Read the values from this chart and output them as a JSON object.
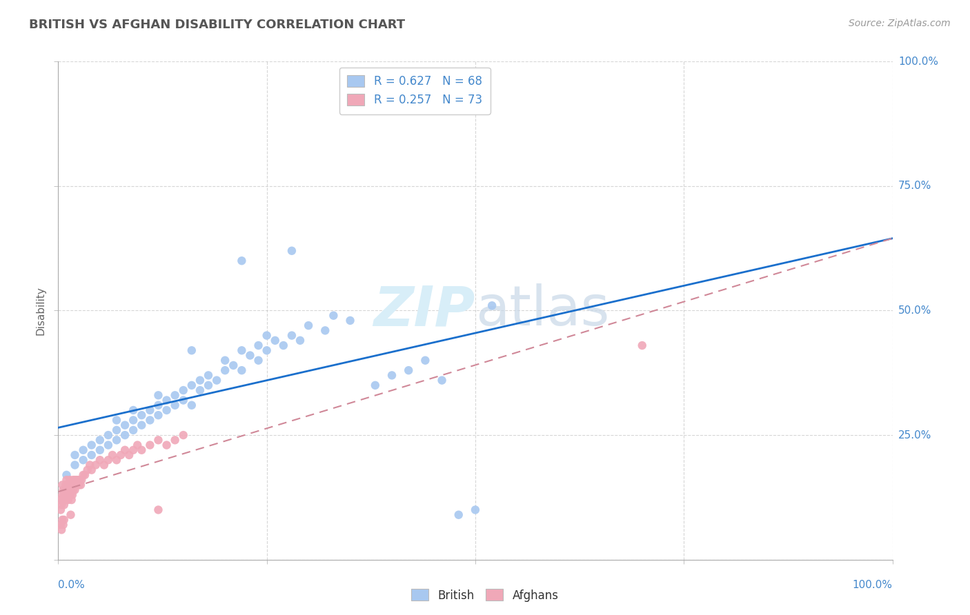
{
  "title": "BRITISH VS AFGHAN DISABILITY CORRELATION CHART",
  "source": "Source: ZipAtlas.com",
  "ylabel": "Disability",
  "british_R": 0.627,
  "british_N": 68,
  "afghan_R": 0.257,
  "afghan_N": 73,
  "british_color": "#a8c8f0",
  "afghan_color": "#f0a8b8",
  "british_line_color": "#1a6fcc",
  "afghan_line_color": "#d08898",
  "grid_color": "#cccccc",
  "background_color": "#ffffff",
  "title_color": "#555555",
  "axis_label_color": "#4488cc",
  "watermark_color": "#d8eef8",
  "british_points": [
    [
      0.01,
      0.17
    ],
    [
      0.02,
      0.19
    ],
    [
      0.02,
      0.21
    ],
    [
      0.03,
      0.2
    ],
    [
      0.03,
      0.22
    ],
    [
      0.04,
      0.21
    ],
    [
      0.04,
      0.23
    ],
    [
      0.05,
      0.22
    ],
    [
      0.05,
      0.24
    ],
    [
      0.06,
      0.23
    ],
    [
      0.06,
      0.25
    ],
    [
      0.07,
      0.24
    ],
    [
      0.07,
      0.26
    ],
    [
      0.07,
      0.28
    ],
    [
      0.08,
      0.25
    ],
    [
      0.08,
      0.27
    ],
    [
      0.09,
      0.26
    ],
    [
      0.09,
      0.28
    ],
    [
      0.09,
      0.3
    ],
    [
      0.1,
      0.27
    ],
    [
      0.1,
      0.29
    ],
    [
      0.11,
      0.28
    ],
    [
      0.11,
      0.3
    ],
    [
      0.12,
      0.29
    ],
    [
      0.12,
      0.31
    ],
    [
      0.12,
      0.33
    ],
    [
      0.13,
      0.3
    ],
    [
      0.13,
      0.32
    ],
    [
      0.14,
      0.31
    ],
    [
      0.14,
      0.33
    ],
    [
      0.15,
      0.32
    ],
    [
      0.15,
      0.34
    ],
    [
      0.16,
      0.31
    ],
    [
      0.16,
      0.35
    ],
    [
      0.16,
      0.42
    ],
    [
      0.17,
      0.34
    ],
    [
      0.17,
      0.36
    ],
    [
      0.18,
      0.35
    ],
    [
      0.18,
      0.37
    ],
    [
      0.19,
      0.36
    ],
    [
      0.2,
      0.38
    ],
    [
      0.2,
      0.4
    ],
    [
      0.21,
      0.39
    ],
    [
      0.22,
      0.38
    ],
    [
      0.22,
      0.42
    ],
    [
      0.23,
      0.41
    ],
    [
      0.24,
      0.4
    ],
    [
      0.24,
      0.43
    ],
    [
      0.25,
      0.42
    ],
    [
      0.25,
      0.45
    ],
    [
      0.26,
      0.44
    ],
    [
      0.27,
      0.43
    ],
    [
      0.28,
      0.45
    ],
    [
      0.29,
      0.44
    ],
    [
      0.3,
      0.47
    ],
    [
      0.32,
      0.46
    ],
    [
      0.33,
      0.49
    ],
    [
      0.35,
      0.48
    ],
    [
      0.22,
      0.6
    ],
    [
      0.28,
      0.62
    ],
    [
      0.38,
      0.35
    ],
    [
      0.4,
      0.37
    ],
    [
      0.42,
      0.38
    ],
    [
      0.44,
      0.4
    ],
    [
      0.46,
      0.36
    ],
    [
      0.48,
      0.09
    ],
    [
      0.5,
      0.1
    ],
    [
      0.52,
      0.51
    ]
  ],
  "afghan_points": [
    [
      0.002,
      0.12
    ],
    [
      0.003,
      0.1
    ],
    [
      0.004,
      0.11
    ],
    [
      0.005,
      0.13
    ],
    [
      0.005,
      0.15
    ],
    [
      0.006,
      0.12
    ],
    [
      0.006,
      0.14
    ],
    [
      0.007,
      0.13
    ],
    [
      0.007,
      0.11
    ],
    [
      0.008,
      0.14
    ],
    [
      0.008,
      0.12
    ],
    [
      0.009,
      0.15
    ],
    [
      0.009,
      0.13
    ],
    [
      0.01,
      0.14
    ],
    [
      0.01,
      0.12
    ],
    [
      0.01,
      0.16
    ],
    [
      0.011,
      0.15
    ],
    [
      0.011,
      0.13
    ],
    [
      0.012,
      0.14
    ],
    [
      0.012,
      0.12
    ],
    [
      0.013,
      0.15
    ],
    [
      0.013,
      0.13
    ],
    [
      0.014,
      0.14
    ],
    [
      0.014,
      0.16
    ],
    [
      0.015,
      0.15
    ],
    [
      0.015,
      0.13
    ],
    [
      0.016,
      0.14
    ],
    [
      0.016,
      0.12
    ],
    [
      0.017,
      0.15
    ],
    [
      0.017,
      0.13
    ],
    [
      0.018,
      0.14
    ],
    [
      0.018,
      0.16
    ],
    [
      0.019,
      0.15
    ],
    [
      0.02,
      0.14
    ],
    [
      0.02,
      0.16
    ],
    [
      0.021,
      0.15
    ],
    [
      0.022,
      0.16
    ],
    [
      0.023,
      0.15
    ],
    [
      0.024,
      0.16
    ],
    [
      0.025,
      0.15
    ],
    [
      0.026,
      0.16
    ],
    [
      0.027,
      0.15
    ],
    [
      0.028,
      0.16
    ],
    [
      0.03,
      0.17
    ],
    [
      0.032,
      0.17
    ],
    [
      0.035,
      0.18
    ],
    [
      0.038,
      0.19
    ],
    [
      0.04,
      0.18
    ],
    [
      0.045,
      0.19
    ],
    [
      0.05,
      0.2
    ],
    [
      0.055,
      0.19
    ],
    [
      0.06,
      0.2
    ],
    [
      0.065,
      0.21
    ],
    [
      0.07,
      0.2
    ],
    [
      0.075,
      0.21
    ],
    [
      0.08,
      0.22
    ],
    [
      0.085,
      0.21
    ],
    [
      0.09,
      0.22
    ],
    [
      0.095,
      0.23
    ],
    [
      0.1,
      0.22
    ],
    [
      0.11,
      0.23
    ],
    [
      0.12,
      0.24
    ],
    [
      0.13,
      0.23
    ],
    [
      0.14,
      0.24
    ],
    [
      0.15,
      0.25
    ],
    [
      0.003,
      0.07
    ],
    [
      0.004,
      0.06
    ],
    [
      0.005,
      0.08
    ],
    [
      0.006,
      0.07
    ],
    [
      0.007,
      0.08
    ],
    [
      0.12,
      0.1
    ],
    [
      0.015,
      0.09
    ],
    [
      0.7,
      0.43
    ]
  ]
}
